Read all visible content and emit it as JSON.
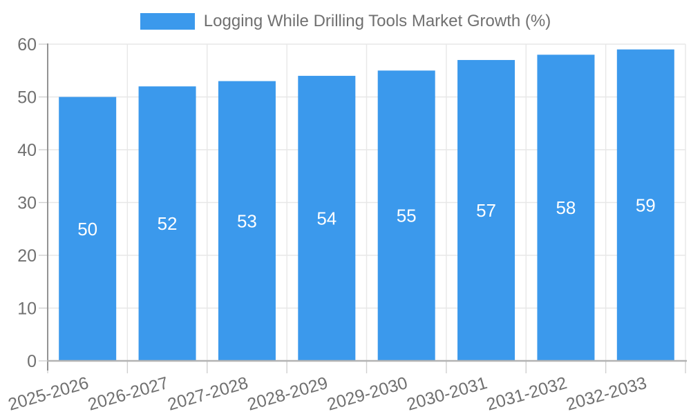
{
  "legend": {
    "label": "Logging While Drilling Tools Market Growth (%)"
  },
  "chart_data": {
    "type": "bar",
    "title": "Logging While Drilling Tools Market Growth (%)",
    "categories": [
      "2025-2026",
      "2026-2027",
      "2027-2028",
      "2028-2029",
      "2029-2030",
      "2030-2031",
      "2031-2032",
      "2032-2033"
    ],
    "series": [
      {
        "name": "Logging While Drilling Tools Market Growth (%)",
        "color": "#3B99EC",
        "values": [
          50,
          52,
          53,
          54,
          55,
          57,
          58,
          59
        ]
      }
    ],
    "xlabel": "",
    "ylabel": "",
    "ylim": [
      0,
      60
    ],
    "yticks": [
      0,
      10,
      20,
      30,
      40,
      50,
      60
    ],
    "grid": true,
    "legend_position": "top-center",
    "value_labels": {
      "position": "inside-center",
      "color": "#ffffff"
    },
    "colors": {
      "grid": "#e7e7e7",
      "tick": "#cfcfcf",
      "axis_x": "#b3b3b3",
      "axis_y": "#929292",
      "label": "#707070"
    }
  }
}
